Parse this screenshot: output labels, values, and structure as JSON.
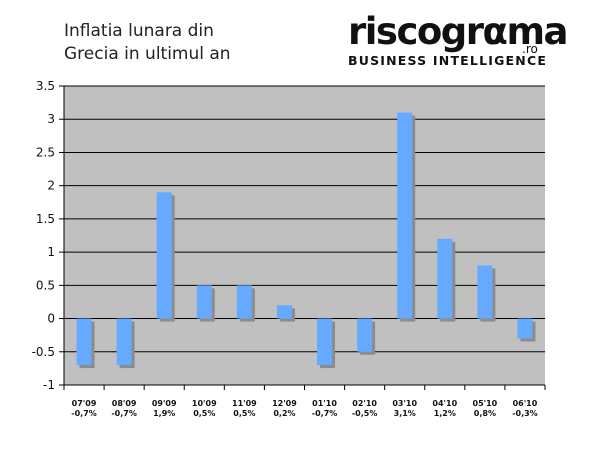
{
  "header": {
    "title_line1": "Inflatia lunara din",
    "title_line2": "Grecia in ultimul an"
  },
  "logo": {
    "word": "riscogrαma",
    "suffix": ".ro",
    "tagline": "BUSINESS INTELLIGENCE"
  },
  "chart_data": {
    "type": "bar",
    "title": "Inflatia lunara din Grecia in ultimul an",
    "xlabel": "",
    "ylabel": "",
    "ylim": [
      -1,
      3.5
    ],
    "yticks": [
      "3.5",
      "3",
      "2.5",
      "2",
      "1.5",
      "1",
      "0.5",
      "0",
      "-0.5",
      "-1"
    ],
    "ytick_values": [
      3.5,
      3,
      2.5,
      2,
      1.5,
      1,
      0.5,
      0,
      -0.5,
      -1
    ],
    "grid": true,
    "categories": [
      "07'09",
      "08'09",
      "09'09",
      "10'09",
      "11'09",
      "12'09",
      "01'10",
      "02'10",
      "03'10",
      "04'10",
      "05'10",
      "06'10"
    ],
    "value_labels": [
      "-0,7%",
      "-0,7%",
      "1,9%",
      "0,5%",
      "0,5%",
      "0,2%",
      "-0,7%",
      "-0,5%",
      "3,1%",
      "1,2%",
      "0,8%",
      "-0,3%"
    ],
    "values": [
      -0.7,
      -0.7,
      1.9,
      0.5,
      0.5,
      0.2,
      -0.7,
      -0.5,
      3.1,
      1.2,
      0.8,
      -0.3
    ],
    "colors": {
      "bar": "#66aaff",
      "bar_shadow": "#8c8c8c",
      "plot_bg": "#c0c0c0",
      "grid": "#000000"
    }
  }
}
